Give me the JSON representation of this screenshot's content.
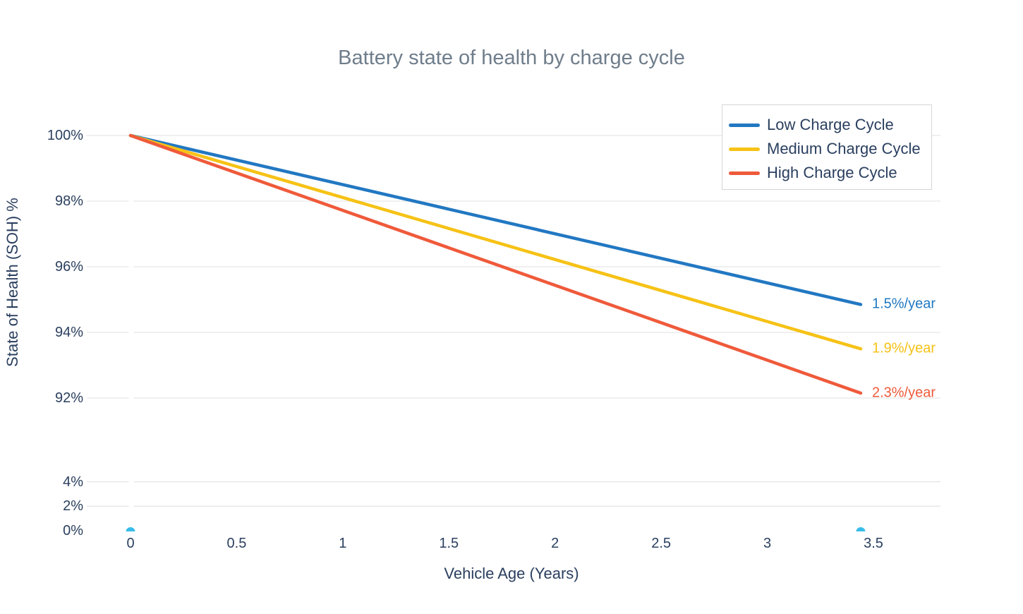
{
  "colors": {
    "background": "#ffffff",
    "axis_text": "#2a3f5f",
    "title_text": "#6f7d8b",
    "gridline": "#e6e6e6",
    "legend_border": "#d6d6d6"
  },
  "chart_data": {
    "type": "line",
    "title": "Battery state of health by charge cycle",
    "xlabel": "Vehicle Age (Years)",
    "ylabel": "State of Health (SOH) %",
    "grid": true,
    "legend_position": "top-right",
    "axis_note": "y-axis is discontinuous: 92%-100% band on top, 0%-4% band below",
    "xlim": [
      0,
      3.8
    ],
    "x_ticks": [
      {
        "value": 0,
        "label": "0"
      },
      {
        "value": 0.5,
        "label": "0.5"
      },
      {
        "value": 1,
        "label": "1"
      },
      {
        "value": 1.5,
        "label": "1.5"
      },
      {
        "value": 2,
        "label": "2"
      },
      {
        "value": 2.5,
        "label": "2.5"
      },
      {
        "value": 3,
        "label": "3"
      },
      {
        "value": 3.5,
        "label": "3.5"
      }
    ],
    "y_ticks": [
      {
        "value": 100,
        "label": "100%",
        "grid": true
      },
      {
        "value": 98,
        "label": "98%",
        "grid": true
      },
      {
        "value": 96,
        "label": "96%",
        "grid": true
      },
      {
        "value": 94,
        "label": "94%",
        "grid": true
      },
      {
        "value": 92,
        "label": "92%",
        "grid": true
      },
      {
        "value": 4,
        "label": "4%",
        "grid": true
      },
      {
        "value": 2,
        "label": "2%",
        "grid": true
      },
      {
        "value": 0,
        "label": "0%",
        "grid": false
      }
    ],
    "series": [
      {
        "name": "Low Charge Cycle",
        "color": "#2278c2",
        "x": [
          0,
          3.44
        ],
        "values": [
          100,
          94.85
        ],
        "rate_pct_per_year": 1.5,
        "annotation": "1.5%/year"
      },
      {
        "name": "Medium Charge Cycle",
        "color": "#f6c216",
        "x": [
          0,
          3.44
        ],
        "values": [
          100,
          93.5
        ],
        "rate_pct_per_year": 1.9,
        "annotation": "1.9%/year"
      },
      {
        "name": "High Charge Cycle",
        "color": "#ef5a3b",
        "x": [
          0,
          3.44
        ],
        "values": [
          100,
          92.15
        ],
        "rate_pct_per_year": 2.3,
        "annotation": "2.3%/year"
      }
    ],
    "markers": {
      "name": "baseline-markers",
      "color": "#38bcea",
      "points": [
        {
          "x": 0,
          "y": 0
        },
        {
          "x": 3.44,
          "y": 0
        }
      ]
    }
  }
}
